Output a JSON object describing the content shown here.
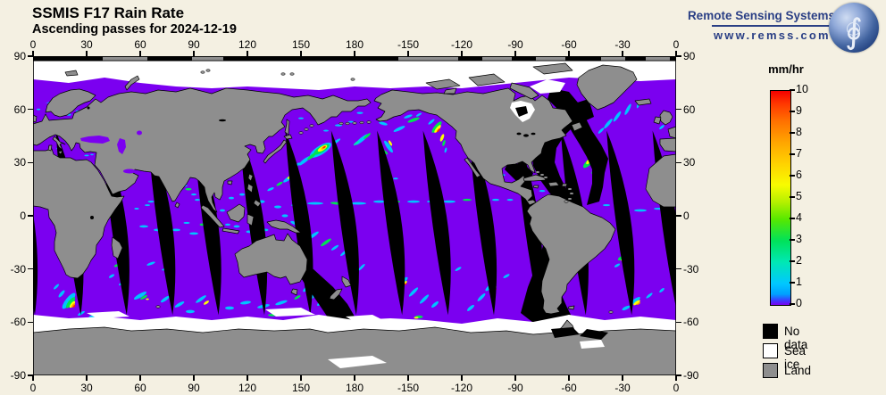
{
  "header": {
    "title": "SSMIS F17 Rain Rate",
    "subtitle": "Ascending passes for 2024-12-19"
  },
  "branding": {
    "name": "Remote Sensing Systems",
    "url": "www.remss.com",
    "color": "#2a3f85",
    "logo_icon": "globe-integral"
  },
  "axes": {
    "lon_labels": [
      "0",
      "30",
      "60",
      "90",
      "120",
      "150",
      "180",
      "-150",
      "-120",
      "-90",
      "-60",
      "-30",
      "0"
    ],
    "lat_labels": [
      "90",
      "60",
      "30",
      "0",
      "-30",
      "-60",
      "-90"
    ]
  },
  "colorbar": {
    "title": "mm/hr",
    "ticks": [
      "10",
      "9",
      "8",
      "7",
      "6",
      "5",
      "4",
      "3",
      "2",
      "1",
      "0"
    ],
    "min": 0,
    "max": 10
  },
  "legend": {
    "items": [
      {
        "label": "No data",
        "color": "#000000"
      },
      {
        "label": "Sea ice",
        "color": "#ffffff"
      },
      {
        "label": "Land",
        "color": "#8e8e8e"
      }
    ]
  },
  "map": {
    "ocean_color": "#7b00f0",
    "land_color": "#8e8e8e",
    "nodata_color": "#000000",
    "seaice_color": "#ffffff",
    "gaps": {
      "count": 15,
      "spacing_deg": 25.7,
      "north_lat": 48,
      "south_lat": -56
    },
    "rain_palette": {
      "c": "#00c3ff",
      "t": "#00e8b0",
      "g": "#00e352",
      "l": "#8ced00",
      "y": "#fdff00",
      "o": "#ff9b00",
      "r": "#ff2200"
    },
    "rain_cells": [
      [
        161,
        37,
        14,
        5,
        -32,
        "c"
      ],
      [
        161.5,
        37.5,
        10,
        3.5,
        -32,
        "g"
      ],
      [
        162,
        38,
        6,
        2.3,
        -32,
        "y"
      ],
      [
        162.7,
        38.4,
        3.2,
        1.3,
        -32,
        "o"
      ],
      [
        163,
        38.7,
        1.7,
        0.8,
        -32,
        "r"
      ],
      [
        152,
        31,
        8,
        2,
        -38,
        "c"
      ],
      [
        156,
        33.5,
        6,
        1.8,
        -38,
        "g"
      ],
      [
        147,
        28,
        6,
        1.5,
        -40,
        "c"
      ],
      [
        170,
        42,
        5,
        1.5,
        -35,
        "c"
      ],
      [
        143,
        21,
        7,
        2,
        -35,
        "c"
      ],
      [
        144,
        22,
        4,
        1.3,
        -35,
        "y"
      ],
      [
        145,
        22.5,
        2,
        0.9,
        -35,
        "o"
      ],
      [
        138,
        18,
        4,
        1.4,
        -30,
        "g"
      ],
      [
        133,
        15,
        4,
        1.4,
        -25,
        "c"
      ],
      [
        84,
        19,
        5,
        2.2,
        -20,
        "c"
      ],
      [
        84.5,
        19.5,
        3,
        1.4,
        -20,
        "o"
      ],
      [
        85,
        19.8,
        1.6,
        0.9,
        -20,
        "r"
      ],
      [
        87,
        15,
        3.5,
        1.3,
        0,
        "g"
      ],
      [
        90,
        12,
        3,
        1.1,
        0,
        "c"
      ],
      [
        85,
        17,
        2.6,
        1,
        0,
        "c"
      ],
      [
        92,
        9,
        3,
        1.1,
        0,
        "c"
      ],
      [
        184,
        43,
        9,
        2.2,
        -40,
        "c"
      ],
      [
        187,
        45,
        5,
        1.4,
        -40,
        "g"
      ],
      [
        181,
        41,
        4,
        1.2,
        -40,
        "t"
      ],
      [
        199,
        39,
        8,
        2.2,
        55,
        "c"
      ],
      [
        200,
        41,
        3.5,
        1.3,
        60,
        "y"
      ],
      [
        197,
        36,
        4,
        1.4,
        40,
        "g"
      ],
      [
        205,
        49,
        7,
        1.8,
        -25,
        "c"
      ],
      [
        196,
        52,
        5,
        1.6,
        15,
        "c"
      ],
      [
        213,
        54,
        7,
        1.8,
        -20,
        "g"
      ],
      [
        210,
        56,
        5,
        1.4,
        -20,
        "c"
      ],
      [
        171,
        51,
        4,
        1.2,
        0,
        "c"
      ],
      [
        178,
        53,
        3,
        1,
        0,
        "c"
      ],
      [
        164,
        48,
        3,
        1,
        0,
        "c"
      ],
      [
        150,
        55,
        3,
        1,
        0,
        "c"
      ],
      [
        183,
        58,
        3.5,
        1.2,
        0,
        "c"
      ],
      [
        216,
        57,
        3.5,
        1.2,
        -30,
        "c"
      ],
      [
        203,
        21,
        2.6,
        1,
        0,
        "c"
      ],
      [
        226,
        50,
        8,
        2.6,
        -50,
        "g"
      ],
      [
        226.5,
        49,
        5.5,
        1.8,
        -50,
        "y"
      ],
      [
        227,
        48.2,
        2.6,
        1,
        -50,
        "r"
      ],
      [
        229,
        44,
        4.5,
        1.7,
        -68,
        "y"
      ],
      [
        230,
        41,
        3.5,
        1.4,
        -72,
        "g"
      ],
      [
        223,
        53,
        4.5,
        1.4,
        -40,
        "c"
      ],
      [
        231,
        37,
        3,
        1.2,
        -75,
        "c"
      ],
      [
        148,
        6,
        7,
        1.4,
        0,
        "c"
      ],
      [
        158,
        7,
        9,
        1.4,
        0,
        "c"
      ],
      [
        170,
        7,
        7,
        1.4,
        5,
        "g"
      ],
      [
        182,
        7,
        9,
        1.4,
        0,
        "c"
      ],
      [
        194,
        8,
        7,
        1.4,
        0,
        "c"
      ],
      [
        203,
        8,
        5,
        1.4,
        0,
        "g"
      ],
      [
        213,
        8,
        7,
        1.4,
        0,
        "c"
      ],
      [
        223,
        8,
        5,
        1.2,
        0,
        "c"
      ],
      [
        233,
        8,
        7,
        1.4,
        0,
        "c"
      ],
      [
        243,
        9,
        5,
        1.2,
        0,
        "g"
      ],
      [
        251,
        9,
        4,
        1.2,
        0,
        "c"
      ],
      [
        259,
        9,
        4,
        1.2,
        0,
        "c"
      ],
      [
        267,
        9,
        3.5,
        1.1,
        0,
        "c"
      ],
      [
        137,
        5,
        4,
        1.6,
        0,
        "c"
      ],
      [
        141,
        0,
        3.5,
        1.6,
        0,
        "c"
      ],
      [
        146,
        -4,
        4,
        1.6,
        20,
        "c"
      ],
      [
        152,
        2,
        3.5,
        1.4,
        0,
        "g"
      ],
      [
        128,
        8,
        3.5,
        1.6,
        0,
        "c"
      ],
      [
        123,
        12,
        3,
        1.4,
        0,
        "c"
      ],
      [
        117,
        12,
        3,
        1.4,
        0,
        "c"
      ],
      [
        111,
        10,
        3,
        1.4,
        0,
        "c"
      ],
      [
        106,
        3,
        3,
        1.4,
        0,
        "c"
      ],
      [
        114,
        -6,
        3.5,
        1.4,
        0,
        "c"
      ],
      [
        121,
        -9,
        3.5,
        1.4,
        0,
        "c"
      ],
      [
        130,
        -8,
        3.5,
        1.4,
        0,
        "c"
      ],
      [
        109,
        -5,
        3,
        1.2,
        0,
        "c"
      ],
      [
        157,
        -11,
        7,
        1.8,
        -35,
        "c"
      ],
      [
        164,
        -15,
        7,
        1.8,
        -35,
        "g"
      ],
      [
        169,
        -18,
        5,
        1.4,
        -35,
        "c"
      ],
      [
        174,
        -21,
        5,
        1.4,
        -40,
        "c"
      ],
      [
        179,
        -25,
        5,
        1.4,
        -40,
        "c"
      ],
      [
        184,
        -29,
        5,
        1.4,
        -45,
        "c"
      ],
      [
        207,
        -37,
        7,
        2.2,
        -40,
        "c"
      ],
      [
        208,
        -38,
        3.5,
        1.4,
        -40,
        "y"
      ],
      [
        208.5,
        -38.5,
        1.4,
        0.8,
        0,
        "r"
      ],
      [
        213,
        -43,
        7,
        1.8,
        -45,
        "c"
      ],
      [
        219,
        -47,
        7,
        1.8,
        -45,
        "c"
      ],
      [
        225,
        -50,
        5,
        1.8,
        -40,
        "c"
      ],
      [
        216,
        -57,
        4.5,
        1.6,
        0,
        "g"
      ],
      [
        214.5,
        -57.5,
        2.5,
        1,
        0,
        "y"
      ],
      [
        256,
        -40,
        7,
        2.2,
        -40,
        "c"
      ],
      [
        258,
        -41,
        3.5,
        1.4,
        -40,
        "y"
      ],
      [
        258.8,
        -41.4,
        1.4,
        0.8,
        0,
        "r"
      ],
      [
        251,
        -46,
        6,
        1.8,
        -45,
        "c"
      ],
      [
        245,
        -52,
        5,
        1.8,
        -40,
        "c"
      ],
      [
        265,
        -34,
        4,
        1.4,
        -30,
        "c"
      ],
      [
        238,
        -30,
        4,
        1.4,
        -30,
        "c"
      ],
      [
        153,
        -41,
        5,
        1.8,
        -45,
        "c"
      ],
      [
        157,
        -45,
        6,
        1.8,
        -45,
        "c"
      ],
      [
        161,
        -49,
        5,
        1.8,
        -40,
        "c"
      ],
      [
        148,
        -46,
        4,
        1.4,
        -30,
        "g"
      ],
      [
        139,
        -49,
        7,
        1.8,
        -18,
        "c"
      ],
      [
        129,
        -51,
        7,
        1.8,
        -12,
        "c"
      ],
      [
        119,
        -49,
        6,
        1.8,
        -8,
        "c"
      ],
      [
        110,
        -52,
        5,
        1.8,
        0,
        "c"
      ],
      [
        143,
        -54,
        4,
        1.4,
        0,
        "c"
      ],
      [
        134,
        -56,
        5,
        1.4,
        0,
        "g"
      ],
      [
        60,
        -45,
        8,
        2.2,
        -30,
        "c"
      ],
      [
        62,
        -46,
        4.5,
        1.4,
        -30,
        "g"
      ],
      [
        64,
        -47,
        1.8,
        0.9,
        0,
        "y"
      ],
      [
        74,
        -47,
        6,
        1.8,
        -35,
        "c"
      ],
      [
        82,
        -50,
        6,
        1.8,
        -30,
        "c"
      ],
      [
        94,
        -47,
        7,
        1.8,
        -35,
        "c"
      ],
      [
        97,
        -49,
        3.5,
        1.4,
        -35,
        "y"
      ],
      [
        88,
        -54,
        5,
        1.8,
        0,
        "c"
      ],
      [
        50,
        -38,
        4.5,
        1.4,
        -30,
        "c"
      ],
      [
        44,
        -34,
        3.5,
        1.4,
        -30,
        "c"
      ],
      [
        49,
        -29,
        2.2,
        1.1,
        0,
        "o"
      ],
      [
        47,
        -28,
        3.5,
        1.4,
        -20,
        "g"
      ],
      [
        66,
        -27,
        5,
        1.4,
        -20,
        "c"
      ],
      [
        74,
        -30,
        4,
        1.2,
        -20,
        "c"
      ],
      [
        20,
        -48,
        11,
        3.6,
        -52,
        "c"
      ],
      [
        21,
        -49,
        7.5,
        2.7,
        -52,
        "g"
      ],
      [
        22,
        -50,
        4.5,
        1.8,
        -52,
        "y"
      ],
      [
        22.5,
        -50.5,
        2.8,
        1.2,
        -52,
        "o"
      ],
      [
        23,
        -51,
        1.7,
        0.9,
        -52,
        "r"
      ],
      [
        16,
        -44,
        5,
        1.8,
        -50,
        "c"
      ],
      [
        13,
        -40,
        4,
        1.4,
        -45,
        "c"
      ],
      [
        27,
        -55,
        4.5,
        1.4,
        -30,
        "c"
      ],
      [
        33,
        -57,
        3.5,
        1.4,
        0,
        "c"
      ],
      [
        62,
        -6,
        5,
        1.4,
        0,
        "c"
      ],
      [
        70,
        -8,
        5,
        1.4,
        0,
        "c"
      ],
      [
        80,
        -8,
        5,
        1.4,
        0,
        "c"
      ],
      [
        90,
        -10,
        5,
        1.4,
        0,
        "c"
      ],
      [
        76,
        -3,
        3.5,
        1.1,
        0,
        "c"
      ],
      [
        86,
        -4,
        3.5,
        1.1,
        0,
        "c"
      ],
      [
        95,
        -5,
        3.5,
        1.4,
        0,
        "g"
      ],
      [
        66,
        8,
        3.5,
        1.1,
        0,
        "c"
      ],
      [
        72,
        6,
        2.6,
        1,
        0,
        "c"
      ],
      [
        58,
        4,
        2.6,
        1,
        0,
        "c"
      ],
      [
        64,
        6,
        3,
        1,
        0,
        "c"
      ],
      [
        330,
        4,
        7,
        1.4,
        0,
        "c"
      ],
      [
        340,
        3,
        7,
        1.4,
        0,
        "c"
      ],
      [
        350,
        4,
        5,
        1.1,
        0,
        "c"
      ],
      [
        321,
        6,
        4,
        1.1,
        0,
        "c"
      ],
      [
        311,
        30,
        8,
        3,
        -45,
        "g"
      ],
      [
        311.5,
        31,
        5,
        2,
        -45,
        "y"
      ],
      [
        312.5,
        32,
        2.4,
        1.1,
        -45,
        "o"
      ],
      [
        314,
        25,
        3.5,
        1.8,
        -50,
        "g"
      ],
      [
        314.5,
        24,
        1.8,
        0.9,
        0,
        "y"
      ],
      [
        322,
        52,
        7,
        1.8,
        -50,
        "c"
      ],
      [
        327,
        56,
        7,
        1.8,
        -55,
        "c"
      ],
      [
        333,
        60,
        7,
        1.8,
        -62,
        "c"
      ],
      [
        339,
        63,
        5,
        1.4,
        -70,
        "c"
      ],
      [
        318,
        48,
        4.5,
        1.4,
        -45,
        "c"
      ],
      [
        329,
        -24,
        3.5,
        1.8,
        -30,
        "g"
      ],
      [
        330,
        -25,
        1.8,
        0.9,
        0,
        "y"
      ],
      [
        333,
        -21,
        2.6,
        1.3,
        -30,
        "y"
      ],
      [
        334,
        -20,
        3.5,
        1.8,
        -30,
        "g"
      ],
      [
        327,
        -28,
        3.5,
        1.4,
        -30,
        "c"
      ],
      [
        337,
        -48,
        7,
        2.2,
        -35,
        "c"
      ],
      [
        338,
        -49,
        4.5,
        1.6,
        -35,
        "y"
      ],
      [
        339,
        -49.5,
        2.2,
        0.9,
        -35,
        "o"
      ],
      [
        332,
        -52,
        5,
        1.8,
        -25,
        "c"
      ],
      [
        345,
        -45,
        4.5,
        1.4,
        -40,
        "c"
      ],
      [
        352,
        -42,
        3.5,
        1.4,
        -40,
        "c"
      ],
      [
        285,
        14,
        3.5,
        1.1,
        0,
        "c"
      ],
      [
        291,
        16,
        2.6,
        0.9,
        0,
        "c"
      ],
      [
        296,
        12,
        2.6,
        0.9,
        0,
        "c"
      ],
      [
        352,
        50,
        3.5,
        1.4,
        -40,
        "c"
      ],
      [
        356,
        54,
        2.6,
        1.1,
        -40,
        "c"
      ],
      [
        20,
        57,
        2.6,
        1.1,
        0,
        "c"
      ],
      [
        25,
        59,
        2.2,
        0.9,
        0,
        "c"
      ],
      [
        30,
        34,
        2.6,
        0.9,
        0,
        "c"
      ],
      [
        33,
        34.5,
        1.8,
        0.8,
        0,
        "c"
      ],
      [
        14,
        38,
        1.8,
        0.8,
        0,
        "c"
      ],
      [
        8,
        64,
        2.6,
        0.9,
        0,
        "c"
      ],
      [
        3,
        60,
        2.2,
        0.9,
        0,
        "c"
      ],
      [
        35,
        43,
        1.8,
        0.8,
        0,
        "c"
      ],
      [
        51,
        42,
        1.8,
        0.8,
        0,
        "c"
      ],
      [
        268,
        25,
        3,
        1,
        0,
        "c"
      ],
      [
        263,
        23,
        2.6,
        1,
        0,
        "c"
      ]
    ]
  }
}
